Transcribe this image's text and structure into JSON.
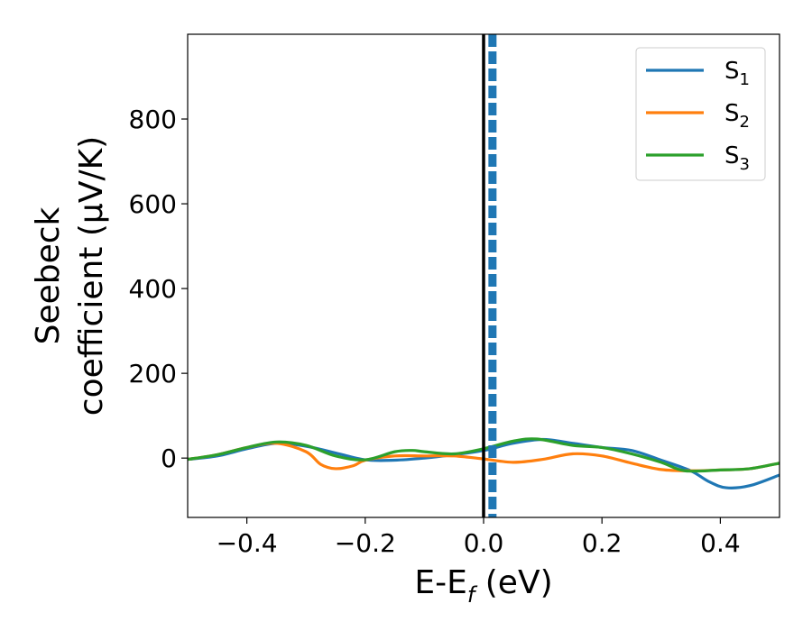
{
  "chart_data": {
    "type": "line",
    "xlabel": "E-E",
    "xlabel_sub": "f",
    "xlabel_unit": " (eV)",
    "ylabel_line1": "Seebeck",
    "ylabel_line2": "coefficient  (μV/K)",
    "xlim": [
      -0.5,
      0.5
    ],
    "ylim": [
      -140,
      1000
    ],
    "xticks": [
      -0.4,
      -0.2,
      0.0,
      0.2,
      0.4
    ],
    "xtick_labels": [
      "−0.4",
      "−0.2",
      "0.0",
      "0.2",
      "0.4"
    ],
    "yticks": [
      0,
      200,
      400,
      600,
      800
    ],
    "ytick_labels": [
      "0",
      "200",
      "400",
      "600",
      "800"
    ],
    "grid": false,
    "legend_position": "top-right",
    "vertical_lines": [
      {
        "x": 0.0,
        "color": "#000000",
        "style": "solid"
      },
      {
        "x": 0.015,
        "color": "#1f77b4",
        "style": "dashed"
      }
    ],
    "series": [
      {
        "name": "S",
        "name_sub": "1",
        "color": "#1f77b4",
        "x": [
          -0.5,
          -0.45,
          -0.4,
          -0.35,
          -0.3,
          -0.25,
          -0.2,
          -0.15,
          -0.1,
          -0.05,
          0.0,
          0.05,
          0.1,
          0.15,
          0.2,
          0.25,
          0.3,
          0.35,
          0.38,
          0.41,
          0.45,
          0.5
        ],
        "y": [
          -3,
          5,
          22,
          35,
          28,
          12,
          -4,
          -5,
          0,
          8,
          18,
          35,
          44,
          35,
          25,
          18,
          -5,
          -30,
          -55,
          -70,
          -65,
          -40
        ]
      },
      {
        "name": "S",
        "name_sub": "2",
        "color": "#ff7f0e",
        "x": [
          -0.5,
          -0.45,
          -0.4,
          -0.35,
          -0.3,
          -0.275,
          -0.25,
          -0.22,
          -0.2,
          -0.15,
          -0.1,
          -0.05,
          0.0,
          0.05,
          0.1,
          0.15,
          0.2,
          0.25,
          0.3,
          0.35,
          0.4,
          0.45,
          0.5
        ],
        "y": [
          -3,
          8,
          25,
          35,
          15,
          -15,
          -25,
          -18,
          -5,
          5,
          5,
          5,
          -2,
          -10,
          -3,
          10,
          5,
          -12,
          -27,
          -30,
          -28,
          -25,
          -12
        ]
      },
      {
        "name": "S",
        "name_sub": "3",
        "color": "#2ca02c",
        "x": [
          -0.5,
          -0.45,
          -0.4,
          -0.35,
          -0.3,
          -0.25,
          -0.2,
          -0.15,
          -0.12,
          -0.1,
          -0.05,
          0.0,
          0.05,
          0.09,
          0.15,
          0.2,
          0.25,
          0.3,
          0.34,
          0.4,
          0.45,
          0.5
        ],
        "y": [
          -3,
          8,
          25,
          38,
          30,
          5,
          -4,
          15,
          18,
          15,
          10,
          22,
          40,
          45,
          30,
          25,
          10,
          -10,
          -30,
          -28,
          -25,
          -12
        ]
      }
    ]
  }
}
